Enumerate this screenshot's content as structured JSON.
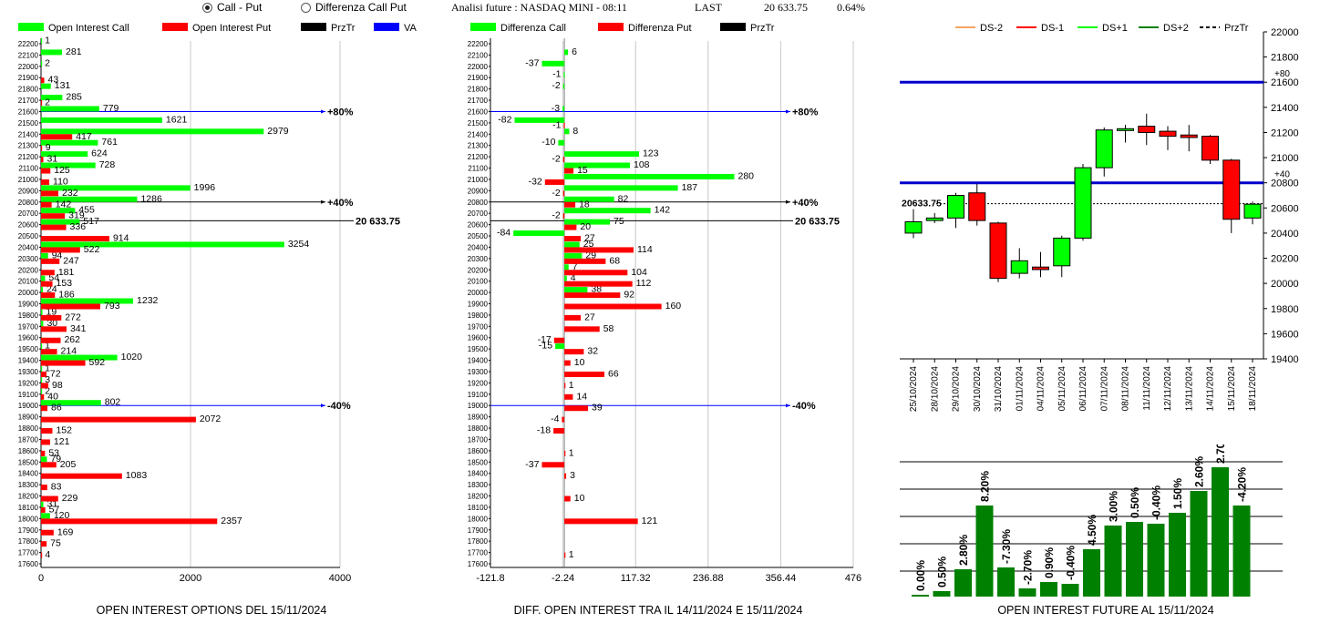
{
  "header": {
    "radio_call_put": "Call - Put",
    "radio_diff": "Differenza Call Put",
    "analysis_label": "Analisi future : NASDAQ MINI - 08:11",
    "last_label": "LAST",
    "last_value": "20 633.75",
    "last_change": "0.64%"
  },
  "chart_data": [
    {
      "type": "bar",
      "orientation": "horizontal",
      "title": "OPEN INTEREST OPTIONS DEL 15/11/2024",
      "legend": [
        {
          "name": "Open Interest Call",
          "color": "#00ff00"
        },
        {
          "name": "Open Interest Put",
          "color": "#ff0000"
        },
        {
          "name": "PrzTr",
          "color": "#000000"
        },
        {
          "name": "VA",
          "color": "#0000ff"
        }
      ],
      "strikes": [
        "22200",
        "22100",
        "22000",
        "21900",
        "21800",
        "21700",
        "21600",
        "21500",
        "21400",
        "21300",
        "21200",
        "21100",
        "21000",
        "20900",
        "20800",
        "20700",
        "20600",
        "20500",
        "20400",
        "20300",
        "20200",
        "20100",
        "20000",
        "19900",
        "19800",
        "19700",
        "19600",
        "19500",
        "19400",
        "19300",
        "19200",
        "19100",
        "19000",
        "18900",
        "18800",
        "18700",
        "18600",
        "18500",
        "18400",
        "18300",
        "18200",
        "18100",
        "18000",
        "17900",
        "17800",
        "17700",
        "17600"
      ],
      "series": [
        {
          "name": "Open Interest Call",
          "color": "#00ff00",
          "values": [
            1,
            281,
            2,
            null,
            131,
            285,
            779,
            1621,
            2979,
            761,
            624,
            728,
            null,
            1996,
            1286,
            455,
            517,
            null,
            3254,
            94,
            null,
            54,
            24,
            1232,
            19,
            30,
            null,
            1,
            1020,
            1,
            3,
            2,
            802,
            null,
            null,
            null,
            null,
            79,
            null,
            null,
            null,
            31,
            120,
            null,
            null,
            null,
            null
          ]
        },
        {
          "name": "Open Interest Put",
          "color": "#ff0000",
          "values": [
            null,
            null,
            null,
            43,
            null,
            2,
            null,
            null,
            417,
            9,
            31,
            125,
            110,
            232,
            142,
            319,
            336,
            914,
            522,
            247,
            181,
            153,
            186,
            793,
            272,
            341,
            262,
            214,
            592,
            72,
            98,
            40,
            86,
            2072,
            152,
            121,
            53,
            205,
            1083,
            83,
            229,
            57,
            2357,
            169,
            75,
            4,
            null
          ]
        }
      ],
      "xticks": [
        "0",
        "2000",
        "4000"
      ],
      "xlim": [
        0,
        4000
      ],
      "reference_lines": [
        {
          "label": "+80%",
          "strike": "21600",
          "color": "#0000ff"
        },
        {
          "label": "+40%",
          "strike": "20800",
          "color": "#000000"
        },
        {
          "label": "20 633.75",
          "value": 20633.75,
          "color": "#000000"
        },
        {
          "label": "-40%",
          "strike": "19000",
          "color": "#0000ff"
        }
      ]
    },
    {
      "type": "bar",
      "orientation": "horizontal",
      "title": "DIFF. OPEN INTEREST TRA IL 14/11/2024 E 15/11/2024",
      "legend": [
        {
          "name": "Differenza Call",
          "color": "#00ff00"
        },
        {
          "name": "Differenza Put",
          "color": "#ff0000"
        },
        {
          "name": "PrzTr",
          "color": "#000000"
        }
      ],
      "strikes": [
        "22200",
        "22100",
        "22000",
        "21900",
        "21800",
        "21700",
        "21600",
        "21500",
        "21400",
        "21300",
        "21200",
        "21100",
        "21000",
        "20900",
        "20800",
        "20700",
        "20600",
        "20500",
        "20400",
        "20300",
        "20200",
        "20100",
        "20000",
        "19900",
        "19800",
        "19700",
        "19600",
        "19500",
        "19400",
        "19300",
        "19200",
        "19100",
        "19000",
        "18900",
        "18800",
        "18700",
        "18600",
        "18500",
        "18400",
        "18300",
        "18200",
        "18100",
        "18000",
        "17900",
        "17800",
        "17700",
        "17600"
      ],
      "series": [
        {
          "name": "Differenza Call",
          "color": "#00ff00",
          "values": [
            null,
            6,
            -37,
            -1,
            -2,
            null,
            -3,
            -82,
            8,
            -10,
            123,
            108,
            280,
            187,
            82,
            142,
            75,
            -84,
            25,
            29,
            7,
            4,
            38,
            null,
            null,
            null,
            null,
            -15,
            null,
            null,
            null,
            null,
            null,
            null,
            null,
            null,
            null,
            null,
            null,
            null,
            null,
            null,
            null,
            null,
            null,
            null,
            null
          ]
        },
        {
          "name": "Differenza Put",
          "color": "#ff0000",
          "values": [
            null,
            null,
            null,
            null,
            null,
            null,
            null,
            -1,
            null,
            null,
            -2,
            15,
            -32,
            -2,
            18,
            -2,
            20,
            27,
            114,
            68,
            104,
            112,
            92,
            160,
            27,
            58,
            -17,
            32,
            10,
            66,
            1,
            14,
            39,
            -4,
            -18,
            null,
            1,
            -37,
            3,
            null,
            10,
            null,
            121,
            null,
            null,
            1,
            null
          ]
        }
      ],
      "xticks": [
        "-121.8",
        "-2.24",
        "117.32",
        "236.88",
        "356.44",
        "476"
      ],
      "xlim": [
        -121.8,
        476
      ],
      "reference_lines": [
        {
          "label": "+80%",
          "strike": "21600",
          "color": "#0000ff"
        },
        {
          "label": "+40%",
          "strike": "20800",
          "color": "#000000"
        },
        {
          "label": "20 633.75",
          "value": 20633.75,
          "color": "#000000"
        },
        {
          "label": "-40%",
          "strike": "19000",
          "color": "#0000ff"
        }
      ]
    },
    {
      "type": "candlestick",
      "legend": [
        {
          "name": "DS-2",
          "color": "#f4a460"
        },
        {
          "name": "DS-1",
          "color": "#ff0000"
        },
        {
          "name": "DS+1",
          "color": "#00ff00"
        },
        {
          "name": "DS+2",
          "color": "#008000"
        },
        {
          "name": "PrzTr",
          "color": "#000000",
          "dashed": true
        }
      ],
      "dates": [
        "25/10/2024",
        "28/10/2024",
        "29/10/2024",
        "30/10/2024",
        "31/10/2024",
        "01/11/2024",
        "04/11/2024",
        "05/11/2024",
        "06/11/2024",
        "07/11/2024",
        "08/11/2024",
        "11/11/2024",
        "12/11/2024",
        "13/11/2024",
        "14/11/2024",
        "15/11/2024",
        "18/11/2024"
      ],
      "ohlc": [
        [
          20400,
          20590,
          20360,
          20490
        ],
        [
          20500,
          20560,
          20480,
          20520
        ],
        [
          20520,
          20720,
          20440,
          20700
        ],
        [
          20720,
          20790,
          20460,
          20500
        ],
        [
          20480,
          20490,
          20010,
          20040
        ],
        [
          20080,
          20280,
          20040,
          20180
        ],
        [
          20130,
          20250,
          20050,
          20110
        ],
        [
          20140,
          20380,
          20050,
          20360
        ],
        [
          20360,
          20950,
          20340,
          20920
        ],
        [
          20920,
          21240,
          20850,
          21220
        ],
        [
          21220,
          21260,
          21120,
          21230
        ],
        [
          21250,
          21350,
          21100,
          21200
        ],
        [
          21210,
          21250,
          21060,
          21170
        ],
        [
          21180,
          21260,
          21050,
          21160
        ],
        [
          21170,
          21180,
          20950,
          20980
        ],
        [
          20980,
          20990,
          20400,
          20510
        ],
        [
          20520,
          20650,
          20470,
          20630
        ]
      ],
      "yticks": [
        "19400",
        "19600",
        "19800",
        "20000",
        "20200",
        "20400",
        "20600",
        "20800",
        "21000",
        "21200",
        "21400",
        "21600",
        "21800",
        "22000"
      ],
      "ylim": [
        19400,
        22000
      ],
      "levels": [
        {
          "label": "+80",
          "value": 21600,
          "color": "#0000cc"
        },
        {
          "label": "+40",
          "value": 20800,
          "color": "#0000cc"
        }
      ],
      "last_label": "20633.75",
      "last_value": 20633.75
    },
    {
      "type": "bar",
      "title": "OPEN INTEREST FUTURE AL 15/11/2024",
      "values": [
        0.0,
        0.5,
        2.8,
        8.2,
        -7.3,
        -2.7,
        0.9,
        -0.4,
        4.5,
        3.0,
        0.5,
        -0.4,
        1.5,
        2.6,
        2.7,
        -4.2
      ],
      "heights": [
        2,
        6,
        30,
        100,
        32,
        9,
        16,
        14,
        52,
        78,
        82,
        80,
        92,
        116,
        142,
        100
      ],
      "labels": [
        "0.00%",
        "0.50%",
        "2.80%",
        "8.20%",
        "-7.30%",
        "-2.70%",
        "0.90%",
        "-0.40%",
        "4.50%",
        "3.00%",
        "0.50%",
        "-0.40%",
        "1.50%",
        "2.60%",
        "2.70%",
        "-4.20%"
      ],
      "color": "#008000"
    }
  ]
}
